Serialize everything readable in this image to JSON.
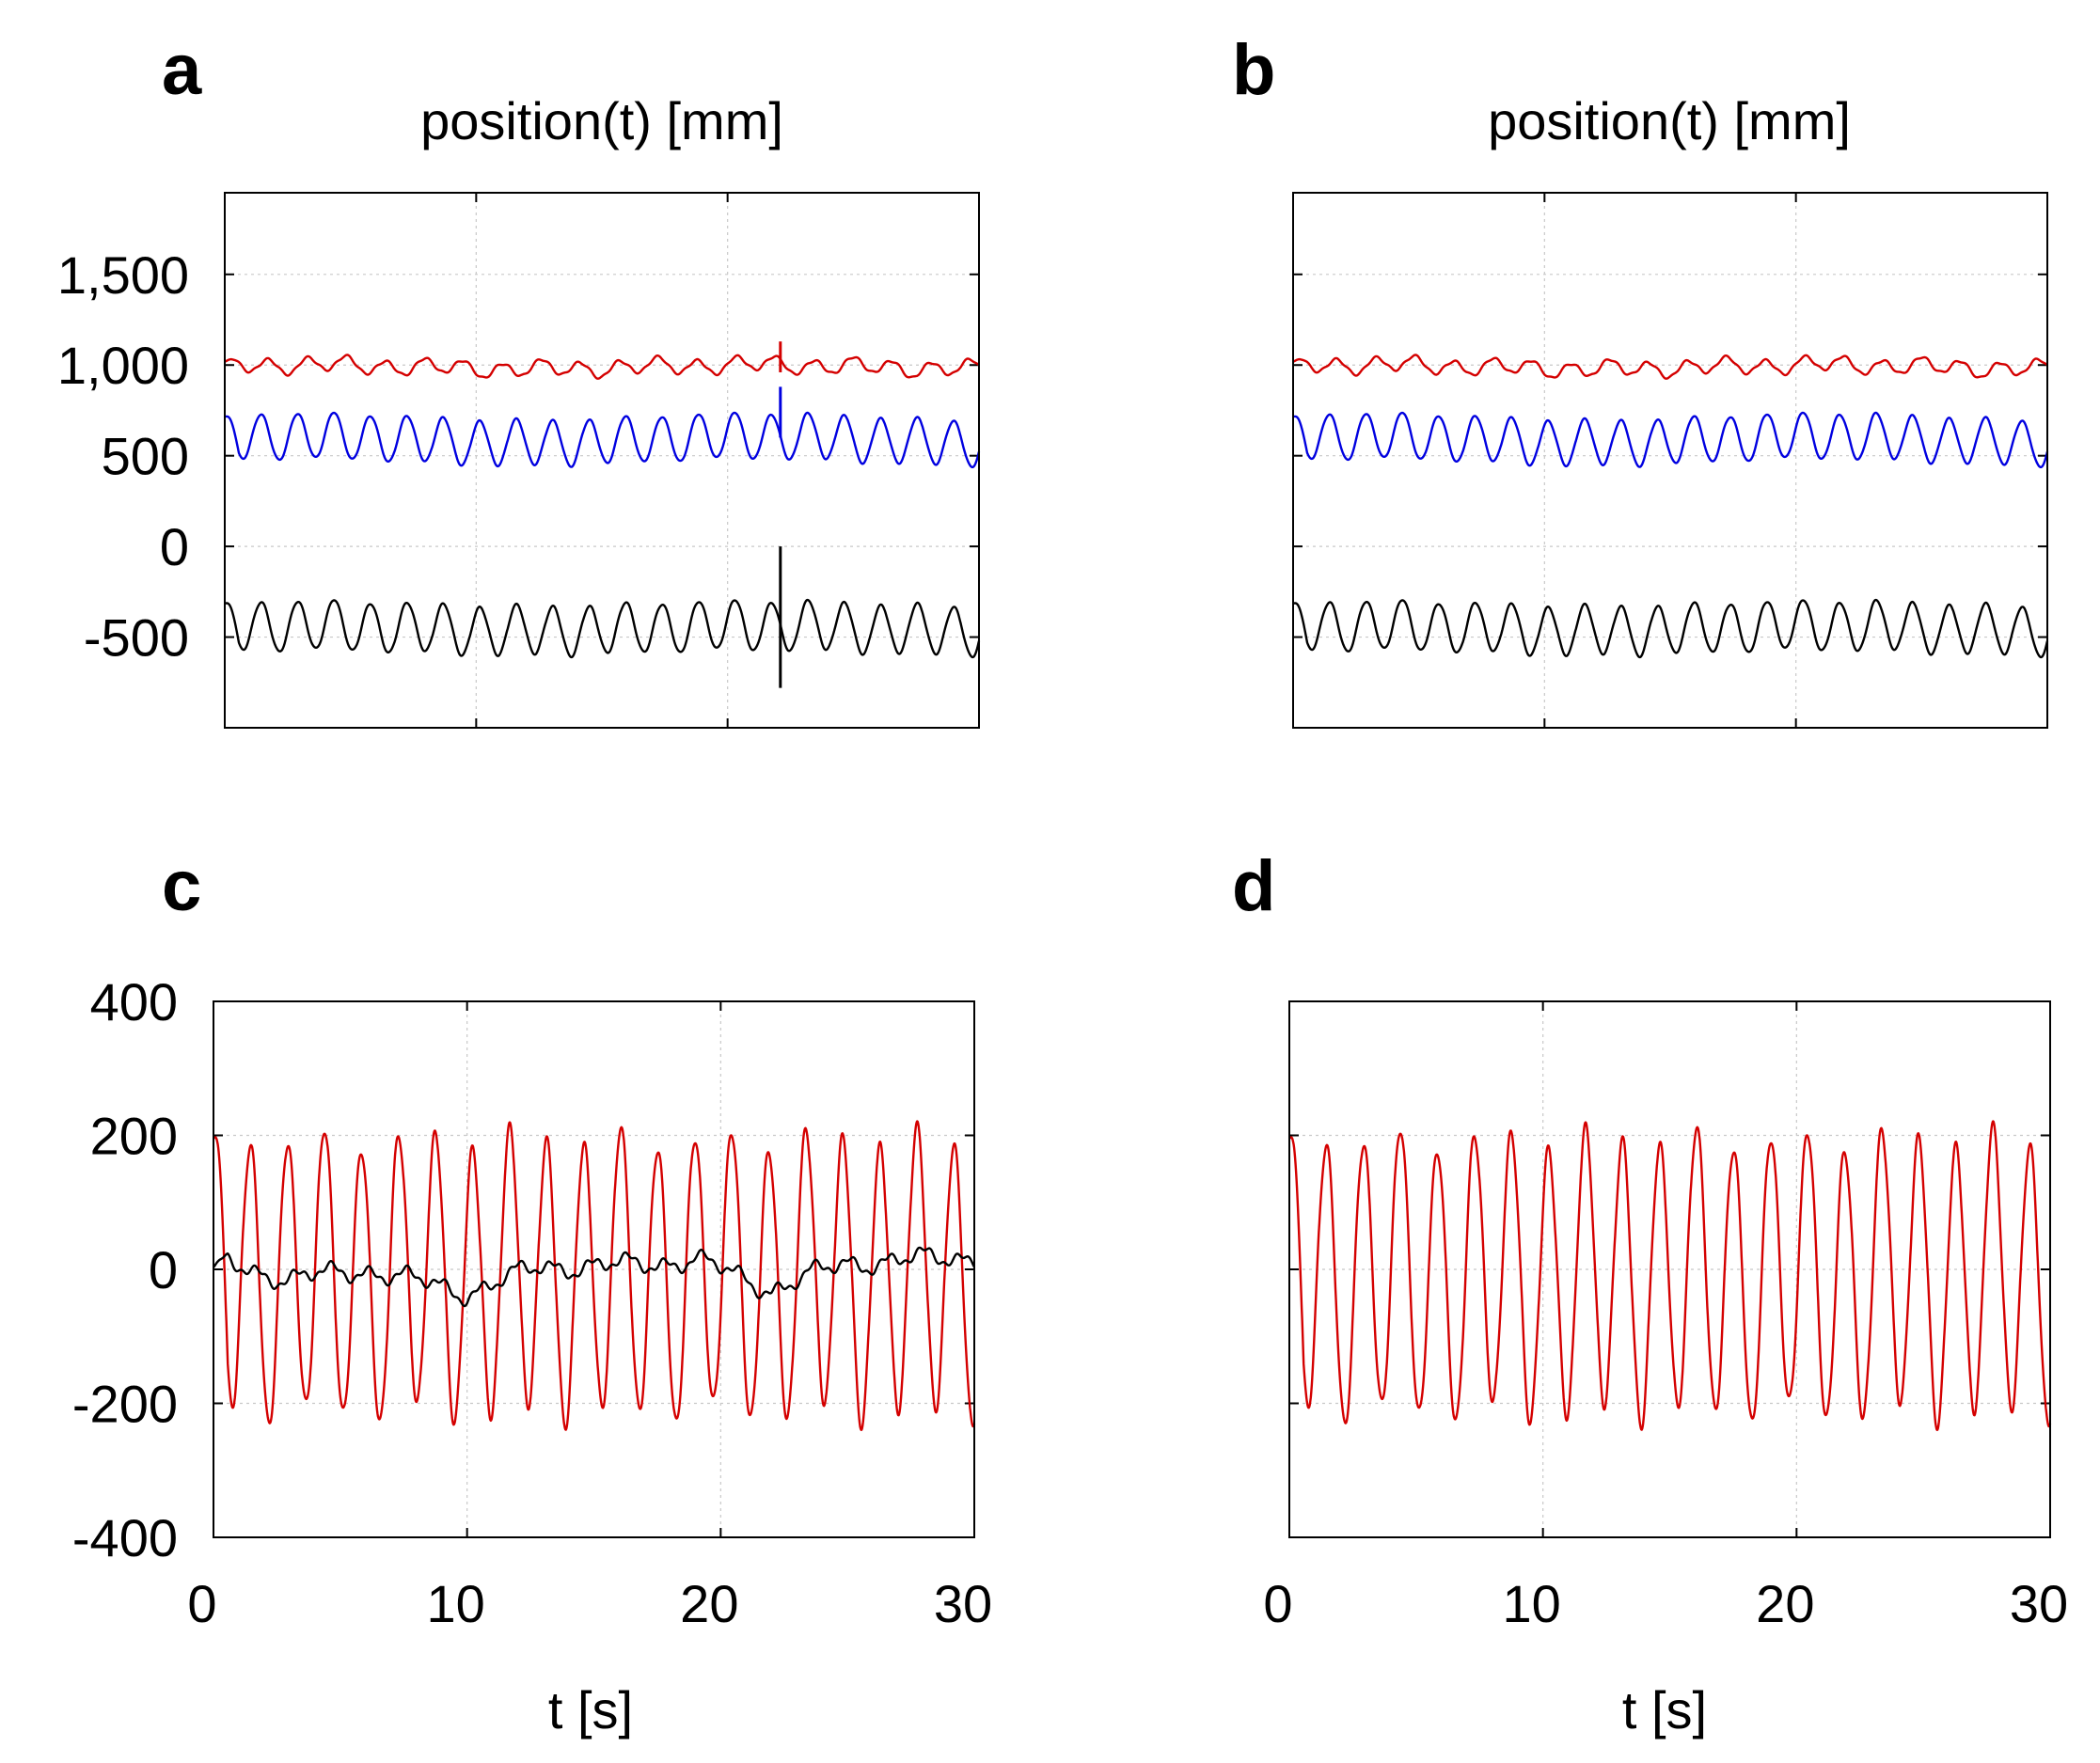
{
  "chart_data": [
    {
      "panel": "a",
      "type": "line",
      "title": "position(t) [mm]",
      "xlabel": "",
      "ylabel": "",
      "xlim": [
        0,
        30
      ],
      "ylim": [
        -1000,
        1950
      ],
      "xticks": [
        0,
        10,
        20,
        30
      ],
      "xtick_labels": [],
      "yticks": [
        -500,
        0,
        500,
        1000,
        1500
      ],
      "ytick_labels": [
        "-500",
        "0",
        "500",
        "1,000",
        "1,500"
      ],
      "grid": true,
      "spike": {
        "t": 22.1,
        "black": [
          0,
          -780
        ],
        "red": [
          960,
          1130
        ],
        "blue": [
          600,
          880
        ]
      },
      "series": [
        {
          "name": "red",
          "color": "#d40000",
          "base": 990,
          "amp": 40,
          "period": 1.55,
          "phase": 0.8,
          "wobble": 14,
          "trend": 12
        },
        {
          "name": "blue",
          "color": "#0000e0",
          "base": 590,
          "amp": 125,
          "period": 1.45,
          "phase": 1.6,
          "wobble": 8,
          "trend": 20
        },
        {
          "name": "black",
          "color": "#000000",
          "base": -450,
          "amp": 135,
          "period": 1.45,
          "phase": 1.57,
          "wobble": 10,
          "trend": 15
        }
      ]
    },
    {
      "panel": "b",
      "type": "line",
      "title": "position(t) [mm]",
      "xlabel": "",
      "ylabel": "",
      "xlim": [
        0,
        30
      ],
      "ylim": [
        -1000,
        1950
      ],
      "xticks": [
        0,
        10,
        20,
        30
      ],
      "xtick_labels": [],
      "yticks": [
        -500,
        0,
        500,
        1000,
        1500
      ],
      "ytick_labels": [],
      "grid": true,
      "series": [
        {
          "name": "red",
          "color": "#d40000",
          "base": 990,
          "amp": 40,
          "period": 1.55,
          "phase": 0.8,
          "wobble": 14,
          "trend": 12
        },
        {
          "name": "blue",
          "color": "#0000e0",
          "base": 590,
          "amp": 125,
          "period": 1.45,
          "phase": 1.6,
          "wobble": 8,
          "trend": 20
        },
        {
          "name": "black",
          "color": "#000000",
          "base": -450,
          "amp": 135,
          "period": 1.45,
          "phase": 1.57,
          "wobble": 10,
          "trend": 15
        }
      ]
    },
    {
      "panel": "c",
      "type": "line",
      "title": "",
      "xlabel": "t [s]",
      "ylabel": "",
      "xlim": [
        0,
        30
      ],
      "ylim": [
        -400,
        400
      ],
      "xticks": [
        0,
        10,
        20,
        30
      ],
      "xtick_labels": [
        "0",
        "10",
        "20",
        "30"
      ],
      "yticks": [
        -400,
        -200,
        0,
        200,
        400
      ],
      "ytick_labels": [
        "-400",
        "-200",
        "0",
        "200",
        "400"
      ],
      "grid": true,
      "series": [
        {
          "name": "red",
          "color": "#d40000",
          "base": -10,
          "amp": 205,
          "period": 1.46,
          "phase": 1.57,
          "wobble": 18,
          "trend": 0
        },
        {
          "name": "black",
          "color": "#000000",
          "base": 0,
          "amp": 10,
          "period": 1.46,
          "phase": 0.3,
          "wobble": 8,
          "trend": 0,
          "drift": [
            [
              0,
              15
            ],
            [
              3,
              -15
            ],
            [
              6,
              0
            ],
            [
              10,
              -35
            ],
            [
              13,
              5
            ],
            [
              16,
              5
            ],
            [
              19,
              15
            ],
            [
              22,
              -30
            ],
            [
              25,
              10
            ],
            [
              28,
              15
            ],
            [
              30,
              20
            ]
          ]
        }
      ]
    },
    {
      "panel": "d",
      "type": "line",
      "title": "",
      "xlabel": "t [s]",
      "ylabel": "",
      "xlim": [
        0,
        30
      ],
      "ylim": [
        -400,
        400
      ],
      "xticks": [
        0,
        10,
        20,
        30
      ],
      "xtick_labels": [
        "0",
        "10",
        "20",
        "30"
      ],
      "yticks": [
        -400,
        -200,
        0,
        200,
        400
      ],
      "ytick_labels": [],
      "grid": true,
      "series": [
        {
          "name": "red",
          "color": "#d40000",
          "base": -10,
          "amp": 205,
          "period": 1.46,
          "phase": 1.57,
          "wobble": 18,
          "trend": 0
        }
      ]
    }
  ]
}
